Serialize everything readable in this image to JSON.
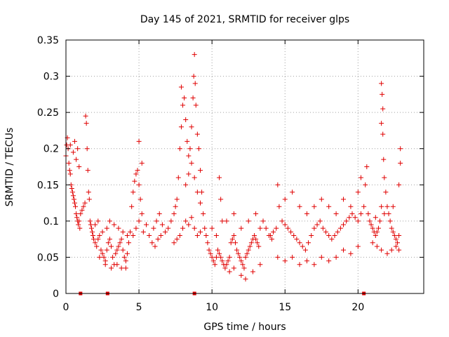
{
  "chart_data": {
    "type": "scatter",
    "title": "Day 145 of 2021, SRMTID for receiver glps",
    "xlabel": "GPS time / hours",
    "ylabel": "SRMTID / TECUs",
    "xlim": [
      0,
      24.5
    ],
    "ylim": [
      0,
      0.35
    ],
    "xticks": [
      0,
      5,
      10,
      15,
      20
    ],
    "yticks": [
      0,
      0.05,
      0.1,
      0.15,
      0.2,
      0.25,
      0.3,
      0.35
    ],
    "xtick_labels": [
      "0",
      "5",
      "10",
      "15",
      "20"
    ],
    "ytick_labels": [
      "0",
      "0.05",
      "0.1",
      "0.15",
      "0.2",
      "0.25",
      "0.3",
      "0.35"
    ],
    "grid": true,
    "marker": "+",
    "color": "#e00000",
    "series": [
      {
        "name": "SRMTID",
        "points": [
          [
            0.0,
            0.19
          ],
          [
            0.05,
            0.205
          ],
          [
            0.1,
            0.215
          ],
          [
            0.15,
            0.2
          ],
          [
            0.2,
            0.18
          ],
          [
            0.25,
            0.17
          ],
          [
            0.3,
            0.165
          ],
          [
            0.35,
            0.15
          ],
          [
            0.4,
            0.145
          ],
          [
            0.45,
            0.14
          ],
          [
            0.5,
            0.135
          ],
          [
            0.55,
            0.13
          ],
          [
            0.6,
            0.125
          ],
          [
            0.65,
            0.12
          ],
          [
            0.7,
            0.11
          ],
          [
            0.75,
            0.105
          ],
          [
            0.8,
            0.1
          ],
          [
            0.85,
            0.095
          ],
          [
            0.9,
            0.1
          ],
          [
            0.95,
            0.09
          ],
          [
            0.3,
            0.205
          ],
          [
            0.5,
            0.195
          ],
          [
            0.6,
            0.21
          ],
          [
            0.7,
            0.185
          ],
          [
            0.8,
            0.2
          ],
          [
            0.9,
            0.175
          ],
          [
            1.0,
            0.11
          ],
          [
            1.1,
            0.115
          ],
          [
            1.2,
            0.12
          ],
          [
            1.3,
            0.125
          ],
          [
            1.35,
            0.245
          ],
          [
            1.4,
            0.235
          ],
          [
            1.45,
            0.2
          ],
          [
            1.5,
            0.17
          ],
          [
            1.55,
            0.14
          ],
          [
            1.6,
            0.13
          ],
          [
            1.65,
            0.1
          ],
          [
            1.7,
            0.095
          ],
          [
            1.75,
            0.09
          ],
          [
            1.8,
            0.085
          ],
          [
            1.85,
            0.08
          ],
          [
            1.9,
            0.075
          ],
          [
            2.0,
            0.07
          ],
          [
            2.1,
            0.065
          ],
          [
            2.2,
            0.075
          ],
          [
            2.3,
            0.08
          ],
          [
            2.4,
            0.06
          ],
          [
            2.5,
            0.055
          ],
          [
            2.6,
            0.05
          ],
          [
            2.7,
            0.045
          ],
          [
            2.8,
            0.06
          ],
          [
            2.9,
            0.07
          ],
          [
            3.0,
            0.075
          ],
          [
            3.1,
            0.065
          ],
          [
            3.2,
            0.05
          ],
          [
            3.3,
            0.04
          ],
          [
            3.4,
            0.055
          ],
          [
            3.5,
            0.06
          ],
          [
            3.6,
            0.065
          ],
          [
            3.7,
            0.07
          ],
          [
            3.8,
            0.075
          ],
          [
            3.9,
            0.06
          ],
          [
            4.0,
            0.05
          ],
          [
            4.1,
            0.045
          ],
          [
            4.2,
            0.055
          ],
          [
            4.3,
            0.07
          ],
          [
            2.0,
            0.095
          ],
          [
            2.2,
            0.1
          ],
          [
            2.5,
            0.085
          ],
          [
            2.8,
            0.09
          ],
          [
            3.0,
            0.1
          ],
          [
            3.3,
            0.095
          ],
          [
            3.6,
            0.09
          ],
          [
            3.9,
            0.085
          ],
          [
            4.2,
            0.08
          ],
          [
            4.4,
            0.085
          ],
          [
            2.3,
            0.05
          ],
          [
            2.7,
            0.04
          ],
          [
            3.1,
            0.035
          ],
          [
            3.5,
            0.04
          ],
          [
            3.8,
            0.035
          ],
          [
            4.1,
            0.035
          ],
          [
            4.5,
            0.12
          ],
          [
            4.6,
            0.14
          ],
          [
            4.7,
            0.155
          ],
          [
            4.8,
            0.165
          ],
          [
            4.9,
            0.17
          ],
          [
            5.0,
            0.15
          ],
          [
            5.1,
            0.13
          ],
          [
            5.2,
            0.11
          ],
          [
            5.0,
            0.21
          ],
          [
            5.2,
            0.18
          ],
          [
            4.6,
            0.08
          ],
          [
            4.8,
            0.09
          ],
          [
            5.0,
            0.1
          ],
          [
            5.3,
            0.085
          ],
          [
            5.5,
            0.095
          ],
          [
            5.7,
            0.08
          ],
          [
            5.9,
            0.07
          ],
          [
            6.1,
            0.065
          ],
          [
            6.3,
            0.075
          ],
          [
            6.5,
            0.08
          ],
          [
            6.0,
            0.09
          ],
          [
            6.2,
            0.1
          ],
          [
            6.4,
            0.11
          ],
          [
            6.6,
            0.095
          ],
          [
            6.8,
            0.085
          ],
          [
            7.0,
            0.09
          ],
          [
            7.2,
            0.1
          ],
          [
            7.4,
            0.11
          ],
          [
            7.5,
            0.12
          ],
          [
            7.6,
            0.13
          ],
          [
            7.7,
            0.16
          ],
          [
            7.8,
            0.2
          ],
          [
            7.9,
            0.23
          ],
          [
            8.0,
            0.26
          ],
          [
            7.9,
            0.285
          ],
          [
            8.1,
            0.27
          ],
          [
            8.2,
            0.24
          ],
          [
            8.3,
            0.21
          ],
          [
            8.4,
            0.19
          ],
          [
            8.5,
            0.2
          ],
          [
            8.6,
            0.23
          ],
          [
            8.7,
            0.27
          ],
          [
            8.75,
            0.3
          ],
          [
            8.8,
            0.33
          ],
          [
            8.85,
            0.29
          ],
          [
            8.9,
            0.26
          ],
          [
            9.0,
            0.22
          ],
          [
            9.1,
            0.2
          ],
          [
            9.2,
            0.17
          ],
          [
            9.3,
            0.14
          ],
          [
            8.2,
            0.15
          ],
          [
            8.4,
            0.165
          ],
          [
            8.6,
            0.18
          ],
          [
            8.8,
            0.16
          ],
          [
            9.0,
            0.14
          ],
          [
            9.2,
            0.125
          ],
          [
            9.4,
            0.11
          ],
          [
            9.5,
            0.09
          ],
          [
            9.6,
            0.08
          ],
          [
            9.7,
            0.07
          ],
          [
            7.4,
            0.07
          ],
          [
            7.6,
            0.075
          ],
          [
            7.8,
            0.08
          ],
          [
            8.0,
            0.09
          ],
          [
            8.2,
            0.1
          ],
          [
            8.4,
            0.095
          ],
          [
            8.6,
            0.105
          ],
          [
            8.8,
            0.09
          ],
          [
            9.0,
            0.08
          ],
          [
            9.2,
            0.085
          ],
          [
            9.8,
            0.06
          ],
          [
            9.9,
            0.055
          ],
          [
            10.0,
            0.05
          ],
          [
            10.1,
            0.045
          ],
          [
            10.2,
            0.04
          ],
          [
            10.3,
            0.05
          ],
          [
            10.4,
            0.06
          ],
          [
            10.5,
            0.055
          ],
          [
            10.6,
            0.05
          ],
          [
            10.7,
            0.045
          ],
          [
            10.8,
            0.04
          ],
          [
            10.9,
            0.035
          ],
          [
            11.0,
            0.04
          ],
          [
            11.1,
            0.045
          ],
          [
            11.2,
            0.05
          ],
          [
            10.5,
            0.16
          ],
          [
            10.6,
            0.13
          ],
          [
            10.7,
            0.1
          ],
          [
            10.0,
            0.09
          ],
          [
            10.3,
            0.08
          ],
          [
            11.3,
            0.07
          ],
          [
            11.4,
            0.075
          ],
          [
            11.5,
            0.08
          ],
          [
            11.6,
            0.07
          ],
          [
            11.7,
            0.06
          ],
          [
            11.8,
            0.055
          ],
          [
            11.9,
            0.05
          ],
          [
            12.0,
            0.045
          ],
          [
            12.1,
            0.04
          ],
          [
            12.2,
            0.035
          ],
          [
            12.3,
            0.05
          ],
          [
            12.4,
            0.055
          ],
          [
            12.5,
            0.06
          ],
          [
            12.6,
            0.065
          ],
          [
            12.7,
            0.07
          ],
          [
            12.8,
            0.075
          ],
          [
            12.9,
            0.08
          ],
          [
            13.0,
            0.075
          ],
          [
            13.1,
            0.07
          ],
          [
            13.2,
            0.065
          ],
          [
            11.0,
            0.1
          ],
          [
            11.5,
            0.11
          ],
          [
            12.0,
            0.09
          ],
          [
            12.5,
            0.1
          ],
          [
            13.0,
            0.11
          ],
          [
            13.3,
            0.09
          ],
          [
            13.5,
            0.1
          ],
          [
            13.7,
            0.09
          ],
          [
            13.9,
            0.08
          ],
          [
            14.1,
            0.075
          ],
          [
            12.0,
            0.025
          ],
          [
            12.3,
            0.02
          ],
          [
            12.8,
            0.03
          ],
          [
            13.3,
            0.04
          ],
          [
            11.5,
            0.035
          ],
          [
            11.2,
            0.03
          ],
          [
            14.0,
            0.08
          ],
          [
            14.2,
            0.085
          ],
          [
            14.4,
            0.09
          ],
          [
            14.5,
            0.15
          ],
          [
            14.6,
            0.12
          ],
          [
            14.8,
            0.1
          ],
          [
            15.0,
            0.095
          ],
          [
            15.2,
            0.09
          ],
          [
            15.4,
            0.085
          ],
          [
            15.6,
            0.08
          ],
          [
            15.8,
            0.075
          ],
          [
            16.0,
            0.07
          ],
          [
            16.2,
            0.065
          ],
          [
            16.4,
            0.06
          ],
          [
            16.6,
            0.07
          ],
          [
            16.8,
            0.08
          ],
          [
            17.0,
            0.09
          ],
          [
            17.2,
            0.095
          ],
          [
            17.4,
            0.1
          ],
          [
            17.6,
            0.09
          ],
          [
            15.0,
            0.13
          ],
          [
            15.5,
            0.14
          ],
          [
            16.0,
            0.12
          ],
          [
            16.5,
            0.11
          ],
          [
            17.0,
            0.12
          ],
          [
            17.5,
            0.13
          ],
          [
            14.5,
            0.05
          ],
          [
            15.0,
            0.045
          ],
          [
            15.5,
            0.05
          ],
          [
            16.0,
            0.04
          ],
          [
            16.5,
            0.045
          ],
          [
            17.0,
            0.04
          ],
          [
            17.5,
            0.05
          ],
          [
            18.0,
            0.045
          ],
          [
            18.5,
            0.05
          ],
          [
            17.8,
            0.085
          ],
          [
            18.0,
            0.08
          ],
          [
            18.2,
            0.075
          ],
          [
            18.4,
            0.08
          ],
          [
            18.6,
            0.085
          ],
          [
            18.8,
            0.09
          ],
          [
            19.0,
            0.095
          ],
          [
            19.2,
            0.1
          ],
          [
            19.4,
            0.105
          ],
          [
            19.6,
            0.11
          ],
          [
            19.8,
            0.105
          ],
          [
            20.0,
            0.1
          ],
          [
            20.2,
            0.11
          ],
          [
            20.4,
            0.12
          ],
          [
            20.5,
            0.15
          ],
          [
            18.0,
            0.12
          ],
          [
            18.5,
            0.11
          ],
          [
            19.0,
            0.13
          ],
          [
            19.5,
            0.12
          ],
          [
            20.0,
            0.14
          ],
          [
            20.2,
            0.16
          ],
          [
            20.6,
            0.175
          ],
          [
            19.0,
            0.06
          ],
          [
            19.5,
            0.055
          ],
          [
            20.0,
            0.065
          ],
          [
            20.7,
            0.11
          ],
          [
            20.8,
            0.1
          ],
          [
            20.9,
            0.095
          ],
          [
            21.0,
            0.09
          ],
          [
            21.1,
            0.085
          ],
          [
            21.2,
            0.08
          ],
          [
            21.3,
            0.085
          ],
          [
            21.4,
            0.09
          ],
          [
            21.5,
            0.1
          ],
          [
            21.6,
            0.12
          ],
          [
            21.6,
            0.29
          ],
          [
            21.65,
            0.275
          ],
          [
            21.7,
            0.255
          ],
          [
            21.6,
            0.235
          ],
          [
            21.7,
            0.22
          ],
          [
            21.75,
            0.185
          ],
          [
            21.8,
            0.16
          ],
          [
            21.9,
            0.14
          ],
          [
            22.0,
            0.12
          ],
          [
            22.1,
            0.11
          ],
          [
            22.2,
            0.1
          ],
          [
            22.3,
            0.09
          ],
          [
            22.4,
            0.085
          ],
          [
            22.5,
            0.08
          ],
          [
            22.6,
            0.075
          ],
          [
            22.7,
            0.07
          ],
          [
            22.8,
            0.08
          ],
          [
            22.9,
            0.2
          ],
          [
            22.9,
            0.18
          ],
          [
            22.8,
            0.15
          ],
          [
            21.0,
            0.07
          ],
          [
            21.3,
            0.065
          ],
          [
            21.6,
            0.06
          ],
          [
            22.0,
            0.055
          ],
          [
            22.3,
            0.06
          ],
          [
            22.6,
            0.065
          ],
          [
            22.8,
            0.06
          ],
          [
            21.2,
            0.105
          ],
          [
            21.8,
            0.11
          ],
          [
            22.4,
            0.12
          ]
        ]
      }
    ],
    "markers_on_axis": [
      {
        "x": 1.0,
        "y": 0
      },
      {
        "x": 2.85,
        "y": 0
      },
      {
        "x": 8.8,
        "y": 0
      },
      {
        "x": 20.4,
        "y": 0
      }
    ]
  }
}
